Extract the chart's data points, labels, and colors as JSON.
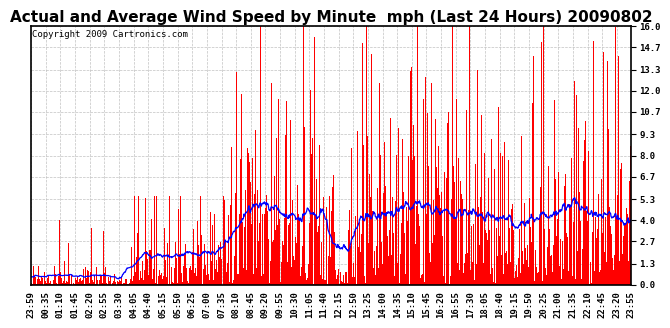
{
  "title": "Actual and Average Wind Speed by Minute  mph (Last 24 Hours) 20090802",
  "copyright": "Copyright 2009 Cartronics.com",
  "yticks": [
    0.0,
    1.3,
    2.7,
    4.0,
    5.3,
    6.7,
    8.0,
    9.3,
    10.7,
    12.0,
    13.3,
    14.7,
    16.0
  ],
  "ylim": [
    0.0,
    16.0
  ],
  "bar_color": "#ff0000",
  "line_color": "#0000ff",
  "bg_color": "#ffffff",
  "grid_color": "#bbbbbb",
  "title_fontsize": 11,
  "copyright_fontsize": 6.5,
  "tick_fontsize": 6.5,
  "n_points": 1440,
  "x_labels": [
    "23:59",
    "00:35",
    "01:10",
    "01:45",
    "02:20",
    "02:55",
    "03:30",
    "04:05",
    "04:40",
    "05:15",
    "05:50",
    "06:25",
    "07:00",
    "07:35",
    "08:10",
    "08:45",
    "09:20",
    "09:55",
    "10:30",
    "11:05",
    "11:40",
    "12:15",
    "12:50",
    "13:25",
    "14:00",
    "14:35",
    "15:10",
    "15:45",
    "16:20",
    "16:55",
    "17:30",
    "18:05",
    "18:40",
    "19:15",
    "19:50",
    "20:25",
    "21:00",
    "21:35",
    "22:10",
    "22:45",
    "23:20",
    "23:55"
  ]
}
